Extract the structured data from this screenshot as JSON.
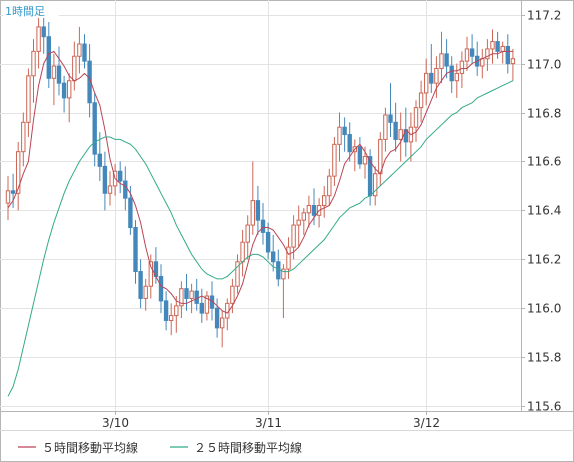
{
  "chart_data": {
    "type": "candlestick",
    "title": "1時間足",
    "y_axis": {
      "side": "right",
      "range": [
        115.58,
        117.26
      ],
      "ticks": [
        115.6,
        115.8,
        116.0,
        116.2,
        116.4,
        116.6,
        116.8,
        117.0,
        117.2
      ],
      "tick_labels": [
        "115.6",
        "115.8",
        "116.0",
        "116.2",
        "116.4",
        "116.6",
        "116.8",
        "117.0",
        "117.2"
      ]
    },
    "x_axis": {
      "ticks": [
        {
          "index": 21,
          "label": "3/10"
        },
        {
          "index": 51,
          "label": "3/11"
        },
        {
          "index": 82,
          "label": "3/12"
        }
      ]
    },
    "grid": true,
    "colors": {
      "up_candle": "#cc6655",
      "down_candle": "#4488bb",
      "ma5": "#bb4455",
      "ma25": "#33aa88",
      "grid": "#e3e3e3",
      "frame": "#b5b5b5",
      "title": "#3399cc"
    },
    "candles": {
      "fields": [
        "open",
        "high",
        "low",
        "close"
      ],
      "values": [
        [
          116.43,
          116.54,
          116.36,
          116.48
        ],
        [
          116.48,
          116.55,
          116.41,
          116.47
        ],
        [
          116.47,
          116.68,
          116.4,
          116.64
        ],
        [
          116.64,
          116.8,
          116.58,
          116.76
        ],
        [
          116.76,
          116.98,
          116.7,
          116.95
        ],
        [
          116.95,
          117.1,
          116.84,
          117.05
        ],
        [
          117.05,
          117.22,
          116.98,
          117.15
        ],
        [
          117.15,
          117.24,
          117.04,
          117.11
        ],
        [
          117.11,
          117.17,
          116.9,
          116.94
        ],
        [
          116.94,
          117.04,
          116.83,
          116.99
        ],
        [
          116.99,
          117.07,
          116.87,
          116.92
        ],
        [
          116.92,
          116.95,
          116.8,
          116.86
        ],
        [
          116.86,
          116.96,
          116.76,
          116.93
        ],
        [
          116.93,
          117.09,
          116.89,
          117.03
        ],
        [
          117.03,
          117.15,
          116.96,
          117.08
        ],
        [
          117.08,
          117.12,
          116.98,
          117.01
        ],
        [
          117.01,
          117.08,
          116.78,
          116.84
        ],
        [
          116.84,
          116.88,
          116.58,
          116.63
        ],
        [
          116.63,
          116.72,
          116.52,
          116.58
        ],
        [
          116.58,
          116.64,
          116.4,
          116.47
        ],
        [
          116.47,
          116.56,
          116.42,
          116.5
        ],
        [
          116.5,
          116.59,
          116.46,
          116.56
        ],
        [
          116.56,
          116.6,
          116.47,
          116.52
        ],
        [
          116.52,
          116.58,
          116.4,
          116.45
        ],
        [
          116.45,
          116.5,
          116.3,
          116.33
        ],
        [
          116.33,
          116.36,
          116.1,
          116.15
        ],
        [
          116.15,
          116.2,
          116.0,
          116.04
        ],
        [
          116.04,
          116.12,
          115.99,
          116.09
        ],
        [
          116.09,
          116.22,
          116.04,
          116.19
        ],
        [
          116.19,
          116.25,
          116.1,
          116.13
        ],
        [
          116.13,
          116.18,
          115.98,
          116.03
        ],
        [
          116.03,
          116.07,
          115.91,
          115.95
        ],
        [
          115.95,
          116.02,
          115.89,
          115.97
        ],
        [
          115.97,
          116.05,
          115.9,
          116.01
        ],
        [
          116.01,
          116.11,
          115.96,
          116.08
        ],
        [
          116.08,
          116.14,
          115.99,
          116.04
        ],
        [
          116.04,
          116.1,
          115.98,
          116.07
        ],
        [
          116.07,
          116.12,
          115.99,
          116.02
        ],
        [
          116.02,
          116.08,
          115.94,
          115.98
        ],
        [
          115.98,
          116.07,
          115.95,
          116.05
        ],
        [
          116.05,
          116.11,
          115.95,
          116.0
        ],
        [
          116.0,
          116.04,
          115.88,
          115.92
        ],
        [
          115.92,
          115.99,
          115.84,
          115.96
        ],
        [
          115.96,
          116.04,
          115.91,
          116.02
        ],
        [
          116.02,
          116.12,
          115.98,
          116.09
        ],
        [
          116.09,
          116.22,
          116.06,
          116.19
        ],
        [
          116.19,
          116.32,
          116.13,
          116.27
        ],
        [
          116.27,
          116.38,
          116.2,
          116.34
        ],
        [
          116.34,
          116.6,
          116.3,
          116.44
        ],
        [
          116.44,
          116.5,
          116.3,
          116.36
        ],
        [
          116.36,
          116.43,
          116.26,
          116.31
        ],
        [
          116.31,
          116.35,
          116.2,
          116.23
        ],
        [
          116.23,
          116.3,
          116.15,
          116.19
        ],
        [
          116.19,
          116.24,
          116.09,
          116.12
        ],
        [
          116.12,
          116.18,
          115.96,
          116.16
        ],
        [
          116.16,
          116.29,
          116.12,
          116.25
        ],
        [
          116.25,
          116.38,
          116.2,
          116.34
        ],
        [
          116.34,
          116.42,
          116.25,
          116.36
        ],
        [
          116.36,
          116.41,
          116.3,
          116.39
        ],
        [
          116.39,
          116.46,
          116.33,
          116.42
        ],
        [
          116.42,
          116.49,
          116.34,
          116.38
        ],
        [
          116.38,
          116.45,
          116.33,
          116.42
        ],
        [
          116.42,
          116.5,
          116.37,
          116.46
        ],
        [
          116.46,
          116.57,
          116.42,
          116.54
        ],
        [
          116.54,
          116.7,
          116.5,
          116.67
        ],
        [
          116.67,
          116.8,
          116.6,
          116.74
        ],
        [
          116.74,
          116.78,
          116.64,
          116.71
        ],
        [
          116.71,
          116.76,
          116.6,
          116.64
        ],
        [
          116.64,
          116.69,
          116.56,
          116.66
        ],
        [
          116.66,
          116.7,
          116.57,
          116.59
        ],
        [
          116.59,
          116.66,
          116.53,
          116.62
        ],
        [
          116.62,
          116.65,
          116.42,
          116.46
        ],
        [
          116.46,
          116.58,
          116.42,
          116.55
        ],
        [
          116.55,
          116.72,
          116.5,
          116.69
        ],
        [
          116.69,
          116.82,
          116.64,
          116.79
        ],
        [
          116.79,
          116.92,
          116.7,
          116.76
        ],
        [
          116.76,
          116.84,
          116.64,
          116.69
        ],
        [
          116.69,
          116.8,
          116.6,
          116.73
        ],
        [
          116.73,
          116.82,
          116.62,
          116.68
        ],
        [
          116.68,
          116.8,
          116.6,
          116.74
        ],
        [
          116.74,
          116.85,
          116.68,
          116.82
        ],
        [
          116.82,
          116.93,
          116.76,
          116.88
        ],
        [
          116.88,
          117.02,
          116.83,
          116.96
        ],
        [
          116.96,
          117.08,
          116.88,
          116.92
        ],
        [
          116.92,
          117.03,
          116.86,
          116.98
        ],
        [
          116.98,
          117.13,
          116.92,
          117.04
        ],
        [
          117.04,
          117.1,
          116.94,
          116.99
        ],
        [
          116.99,
          117.03,
          116.88,
          116.93
        ],
        [
          116.93,
          117.0,
          116.86,
          116.96
        ],
        [
          116.96,
          117.05,
          116.9,
          117.01
        ],
        [
          117.01,
          117.11,
          116.97,
          117.06
        ],
        [
          117.06,
          117.12,
          117.0,
          117.03
        ],
        [
          117.03,
          117.09,
          116.95,
          116.99
        ],
        [
          116.99,
          117.06,
          116.94,
          117.02
        ],
        [
          117.02,
          117.1,
          116.97,
          117.06
        ],
        [
          117.06,
          117.14,
          117.0,
          117.09
        ],
        [
          117.09,
          117.13,
          117.02,
          117.05
        ],
        [
          117.05,
          117.09,
          117.0,
          117.07
        ],
        [
          117.07,
          117.12,
          116.96,
          117.0
        ],
        [
          117.0,
          117.06,
          116.93,
          117.02
        ]
      ]
    },
    "series": [
      {
        "name": "５時間移動平均線",
        "values": [
          116.41,
          116.44,
          116.49,
          116.55,
          116.6,
          116.77,
          116.91,
          117.0,
          117.04,
          117.05,
          117.02,
          116.99,
          116.95,
          116.93,
          116.94,
          116.96,
          116.94,
          116.88,
          116.83,
          116.73,
          116.61,
          116.53,
          116.51,
          116.5,
          116.47,
          116.42,
          116.35,
          116.25,
          116.17,
          116.13,
          116.09,
          116.08,
          116.06,
          116.03,
          116.02,
          116.02,
          116.03,
          116.04,
          116.05,
          116.04,
          116.03,
          116.01,
          115.99,
          115.98,
          116.01,
          116.05,
          116.1,
          116.18,
          116.26,
          116.31,
          116.33,
          116.33,
          116.32,
          116.29,
          116.26,
          116.22,
          116.23,
          116.25,
          116.29,
          116.34,
          116.37,
          116.4,
          116.41,
          116.42,
          116.46,
          116.52,
          116.59,
          116.62,
          116.65,
          116.67,
          116.64,
          116.6,
          116.57,
          116.55,
          116.61,
          116.64,
          116.65,
          116.68,
          116.73,
          116.71,
          116.72,
          116.75,
          116.8,
          116.85,
          116.9,
          116.93,
          116.96,
          116.97,
          116.97,
          116.98,
          116.98,
          117.0,
          117.01,
          117.02,
          117.03,
          117.04,
          117.04,
          117.05,
          117.05,
          117.05
        ]
      },
      {
        "name": "２５時間移動平均線",
        "values": [
          115.64,
          115.68,
          115.75,
          115.84,
          115.93,
          116.02,
          116.11,
          116.2,
          116.28,
          116.35,
          116.41,
          116.47,
          116.52,
          116.56,
          116.6,
          116.63,
          116.66,
          116.68,
          116.69,
          116.7,
          116.7,
          116.69,
          116.69,
          116.68,
          116.67,
          116.65,
          116.62,
          116.59,
          116.55,
          116.51,
          116.47,
          116.43,
          116.39,
          116.34,
          116.3,
          116.26,
          116.22,
          116.19,
          116.16,
          116.14,
          116.13,
          116.12,
          116.12,
          116.13,
          116.15,
          116.17,
          116.19,
          116.21,
          116.22,
          116.22,
          116.21,
          116.19,
          116.17,
          116.16,
          116.15,
          116.15,
          116.16,
          116.18,
          116.2,
          116.22,
          116.24,
          116.26,
          116.28,
          116.31,
          116.34,
          116.37,
          116.39,
          116.41,
          116.42,
          116.43,
          116.45,
          116.46,
          116.48,
          116.5,
          116.52,
          116.54,
          116.56,
          116.58,
          116.6,
          116.62,
          116.64,
          116.66,
          116.69,
          116.71,
          116.73,
          116.75,
          116.77,
          116.79,
          116.8,
          116.82,
          116.83,
          116.84,
          116.86,
          116.87,
          116.88,
          116.89,
          116.9,
          116.91,
          116.92,
          116.93
        ]
      }
    ],
    "legend": {
      "placement": "bottom-left",
      "items": [
        {
          "label": "５時間移動平均線",
          "color": "#bb4455"
        },
        {
          "label": "２５時間移動平均線",
          "color": "#33aa88"
        }
      ]
    }
  }
}
